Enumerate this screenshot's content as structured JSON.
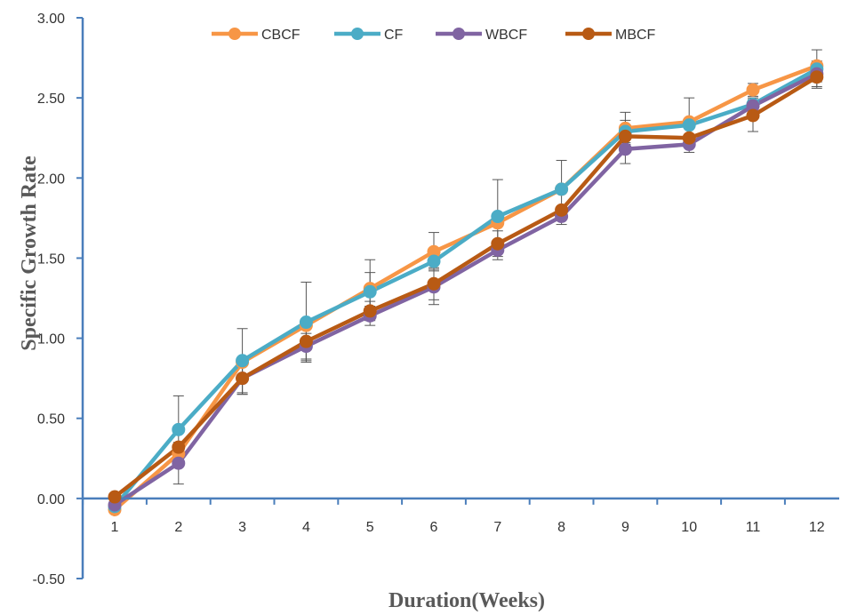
{
  "chart_data": {
    "type": "line",
    "title": "",
    "xlabel": "Duration(Weeks)",
    "ylabel": "Specific Growth Rate",
    "categories": [
      "1",
      "2",
      "3",
      "4",
      "5",
      "6",
      "7",
      "8",
      "9",
      "10",
      "11",
      "12"
    ],
    "ylim": [
      -0.5,
      3.0
    ],
    "yticks": [
      "3.00",
      "2.50",
      "2.00",
      "1.50",
      "1.00",
      "0.50",
      "0.00",
      "-0.50"
    ],
    "ytick_values": [
      3.0,
      2.5,
      2.0,
      1.5,
      1.0,
      0.5,
      0.0,
      -0.5
    ],
    "grid": false,
    "legend_position": "top",
    "series": [
      {
        "name": "CBCF",
        "color": "#F79646",
        "values": [
          -0.07,
          0.28,
          0.85,
          1.08,
          1.31,
          1.54,
          1.72,
          1.93,
          2.31,
          2.35,
          2.55,
          2.7
        ],
        "errors": [
          0,
          0,
          0,
          0,
          0.18,
          0.12,
          0,
          0,
          0.1,
          0.15,
          0.04,
          0.1
        ]
      },
      {
        "name": "CF",
        "color": "#4BACC6",
        "values": [
          -0.05,
          0.43,
          0.86,
          1.1,
          1.29,
          1.48,
          1.76,
          1.93,
          2.29,
          2.33,
          2.46,
          2.68
        ],
        "errors": [
          0,
          0.21,
          0.2,
          0.25,
          0.12,
          0,
          0.23,
          0.18,
          0.07,
          0,
          0,
          0
        ]
      },
      {
        "name": "WBCF",
        "color": "#8064A2",
        "values": [
          -0.04,
          0.22,
          0.75,
          0.95,
          1.14,
          1.32,
          1.55,
          1.76,
          2.18,
          2.21,
          2.45,
          2.65
        ],
        "errors": [
          0,
          0.13,
          0.1,
          0.08,
          0.06,
          0.11,
          0.06,
          0.05,
          0.09,
          0.05,
          0.05,
          0.08
        ]
      },
      {
        "name": "MBCF",
        "color": "#B85A14",
        "values": [
          0.01,
          0.32,
          0.75,
          0.98,
          1.17,
          1.34,
          1.59,
          1.8,
          2.26,
          2.25,
          2.39,
          2.63
        ],
        "errors": [
          0,
          0,
          0.1,
          0.12,
          0.06,
          0.1,
          0.08,
          0,
          0,
          0,
          0.1,
          0.07
        ]
      }
    ]
  }
}
